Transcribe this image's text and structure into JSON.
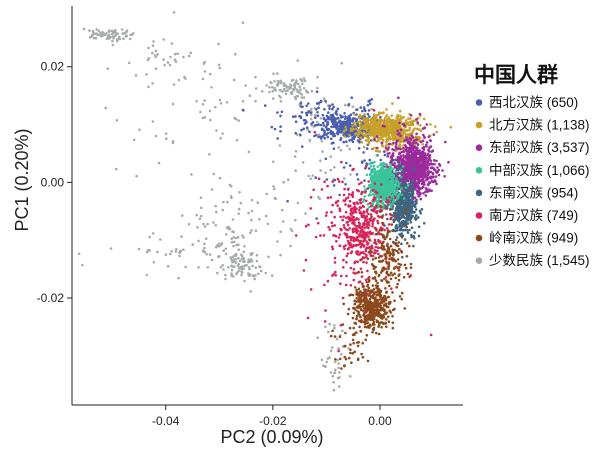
{
  "chart_data": {
    "type": "scatter",
    "xlabel": "PC2 (0.09%)",
    "ylabel": "PC1 (0.20%)",
    "xlim": [
      -0.0575,
      0.0155
    ],
    "ylim": [
      -0.0385,
      0.0305
    ],
    "x_ticks": [
      {
        "value": -0.04,
        "label": "-0.04"
      },
      {
        "value": -0.02,
        "label": "-0.02"
      },
      {
        "value": 0.0,
        "label": "0.00"
      }
    ],
    "y_ticks": [
      {
        "value": 0.02,
        "label": "0.02"
      },
      {
        "value": 0.0,
        "label": "0.00"
      },
      {
        "value": -0.02,
        "label": "-0.02"
      }
    ],
    "grid": false,
    "legend": {
      "title": "中国人群",
      "position": "right",
      "entries": [
        {
          "name": "西北汉族",
          "count": "(650)",
          "color": "#4a5fae"
        },
        {
          "name": "北方汉族",
          "count": "(1,138)",
          "color": "#c8a02a"
        },
        {
          "name": "东部汉族",
          "count": "(3,537)",
          "color": "#9c2a9c"
        },
        {
          "name": "中部汉族",
          "count": "(1,066)",
          "color": "#3bc49a"
        },
        {
          "name": "东南汉族",
          "count": "(954)",
          "color": "#3f6580"
        },
        {
          "name": "南方汉族",
          "count": "(749)",
          "color": "#d8245a"
        },
        {
          "name": "岭南汉族",
          "count": "(949)",
          "color": "#8c4a1c"
        },
        {
          "name": "少数民族",
          "count": "(1,545)",
          "color": "#a7acaa"
        }
      ]
    },
    "series": [
      {
        "name": "少数民族",
        "color": "#a7acaa",
        "clusters": [
          {
            "cx": -0.051,
            "cy": 0.0255,
            "sx": 0.0022,
            "sy": 0.0006,
            "n": 70
          },
          {
            "cx": -0.026,
            "cy": -0.0145,
            "sx": 0.002,
            "sy": 0.0012,
            "n": 90
          },
          {
            "cx": -0.0165,
            "cy": 0.0165,
            "sx": 0.0025,
            "sy": 0.0009,
            "n": 85
          },
          {
            "cx": -0.038,
            "cy": -0.0115,
            "sx": 0.006,
            "sy": 0.002,
            "n": 45
          },
          {
            "cx": -0.029,
            "cy": -0.0075,
            "sx": 0.003,
            "sy": 0.003,
            "n": 60
          },
          {
            "cx": -0.032,
            "cy": 0.0125,
            "sx": 0.009,
            "sy": 0.006,
            "n": 70
          },
          {
            "cx": -0.008,
            "cy": -0.0305,
            "sx": 0.0012,
            "sy": 0.003,
            "n": 40
          },
          {
            "cx": -0.0125,
            "cy": 0.0115,
            "sx": 0.003,
            "sy": 0.002,
            "n": 35
          },
          {
            "cx": -0.04,
            "cy": 0.022,
            "sx": 0.004,
            "sy": 0.0015,
            "n": 25
          },
          {
            "cx": -0.02,
            "cy": -0.0045,
            "sx": 0.004,
            "sy": 0.004,
            "n": 30
          },
          {
            "cx": -0.01,
            "cy": 0.002,
            "sx": 0.003,
            "sy": 0.003,
            "n": 25
          }
        ]
      },
      {
        "name": "西北汉族",
        "color": "#4a5fae",
        "clusters": [
          {
            "cx": -0.0055,
            "cy": 0.0095,
            "sx": 0.0028,
            "sy": 0.0012,
            "n": 300
          },
          {
            "cx": -0.01,
            "cy": 0.011,
            "sx": 0.0045,
            "sy": 0.0018,
            "n": 140
          },
          {
            "cx": -0.004,
            "cy": 0.003,
            "sx": 0.004,
            "sy": 0.004,
            "n": 60
          }
        ]
      },
      {
        "name": "北方汉族",
        "color": "#c8a02a",
        "clusters": [
          {
            "cx": 0.0005,
            "cy": 0.0095,
            "sx": 0.0026,
            "sy": 0.0012,
            "n": 420
          },
          {
            "cx": 0.003,
            "cy": 0.0085,
            "sx": 0.003,
            "sy": 0.0015,
            "n": 200
          }
        ]
      },
      {
        "name": "东部汉族",
        "color": "#9c2a9c",
        "clusters": [
          {
            "cx": 0.0065,
            "cy": 0.0025,
            "sx": 0.0018,
            "sy": 0.0022,
            "n": 700
          },
          {
            "cx": 0.005,
            "cy": 0.0045,
            "sx": 0.0025,
            "sy": 0.003,
            "n": 200
          }
        ]
      },
      {
        "name": "东南汉族",
        "color": "#3f6580",
        "clusters": [
          {
            "cx": 0.0045,
            "cy": -0.0045,
            "sx": 0.0012,
            "sy": 0.0025,
            "n": 380
          },
          {
            "cx": 0.0035,
            "cy": -0.002,
            "sx": 0.002,
            "sy": 0.003,
            "n": 120
          }
        ]
      },
      {
        "name": "中部汉族",
        "color": "#3bc49a",
        "clusters": [
          {
            "cx": 0.0005,
            "cy": -0.0005,
            "sx": 0.0013,
            "sy": 0.0016,
            "n": 650
          }
        ]
      },
      {
        "name": "南方汉族",
        "color": "#d8245a",
        "clusters": [
          {
            "cx": -0.0035,
            "cy": -0.0075,
            "sx": 0.0024,
            "sy": 0.003,
            "n": 360
          },
          {
            "cx": -0.0045,
            "cy": -0.016,
            "sx": 0.0045,
            "sy": 0.0045,
            "n": 90
          },
          {
            "cx": -0.008,
            "cy": -0.002,
            "sx": 0.004,
            "sy": 0.0035,
            "n": 40
          }
        ]
      },
      {
        "name": "岭南汉族",
        "color": "#8c4a1c",
        "clusters": [
          {
            "cx": -0.0015,
            "cy": -0.0215,
            "sx": 0.0018,
            "sy": 0.002,
            "n": 420
          },
          {
            "cx": 0.0015,
            "cy": -0.013,
            "sx": 0.002,
            "sy": 0.0035,
            "n": 170
          },
          {
            "cx": -0.006,
            "cy": -0.0285,
            "sx": 0.0018,
            "sy": 0.0025,
            "n": 40
          }
        ]
      }
    ]
  }
}
